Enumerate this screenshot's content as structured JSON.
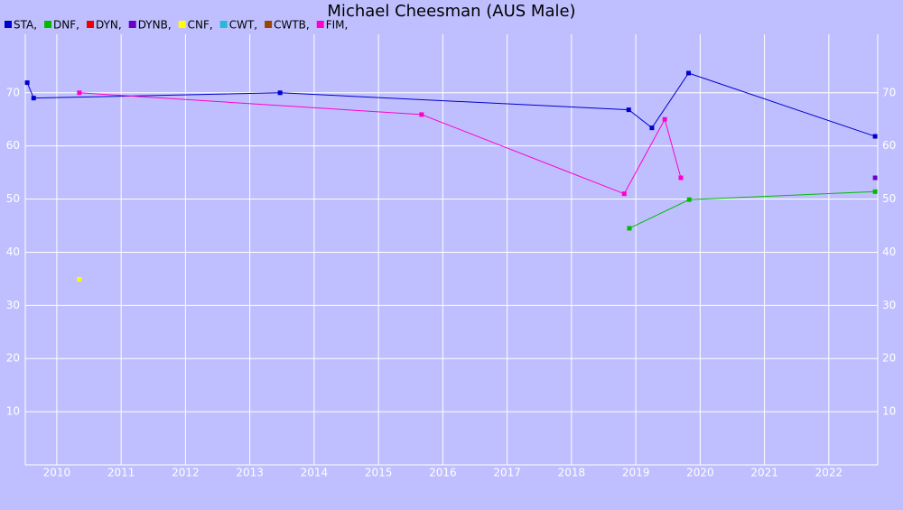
{
  "chart_data": {
    "type": "line",
    "title": "Michael Cheesman (AUS Male)",
    "series": [
      {
        "name": "STA,",
        "color": "#0000cc",
        "x": [
          2009.54,
          2009.64,
          2013.47,
          2018.89,
          2019.25,
          2019.82,
          2022.72
        ],
        "values": [
          71.9,
          69,
          70,
          66.8,
          63.4,
          73.7,
          61.8
        ]
      },
      {
        "name": "DNF,",
        "color": "#00bb00",
        "x": [
          2018.9,
          2019.83,
          2022.72
        ],
        "values": [
          44.5,
          49.9,
          51.4
        ]
      },
      {
        "name": "DYN,",
        "color": "#ee0000",
        "x": [],
        "values": []
      },
      {
        "name": "DYNB,",
        "color": "#6600cc",
        "x": [
          2022.72
        ],
        "values": [
          54
        ]
      },
      {
        "name": "CNF,",
        "color": "#ffff00",
        "x": [
          2010.35
        ],
        "values": [
          34.9
        ]
      },
      {
        "name": "CWT,",
        "color": "#22bbdd",
        "x": [],
        "values": []
      },
      {
        "name": "CWTB,",
        "color": "#994400",
        "x": [],
        "values": []
      },
      {
        "name": "FIM,",
        "color": "#ff00cc",
        "x": [
          2010.35,
          2015.67,
          2018.82,
          2019.45,
          2019.7
        ],
        "values": [
          70,
          65.9,
          51,
          65,
          54
        ]
      }
    ],
    "xlim": [
      2009.51,
      2022.76
    ],
    "xticks": [
      2010,
      2011,
      2012,
      2013,
      2014,
      2015,
      2016,
      2017,
      2018,
      2019,
      2020,
      2021,
      2022
    ],
    "ylim": [
      0,
      81
    ],
    "yticks": [
      10,
      20,
      30,
      40,
      50,
      60,
      70
    ],
    "grid": true
  }
}
